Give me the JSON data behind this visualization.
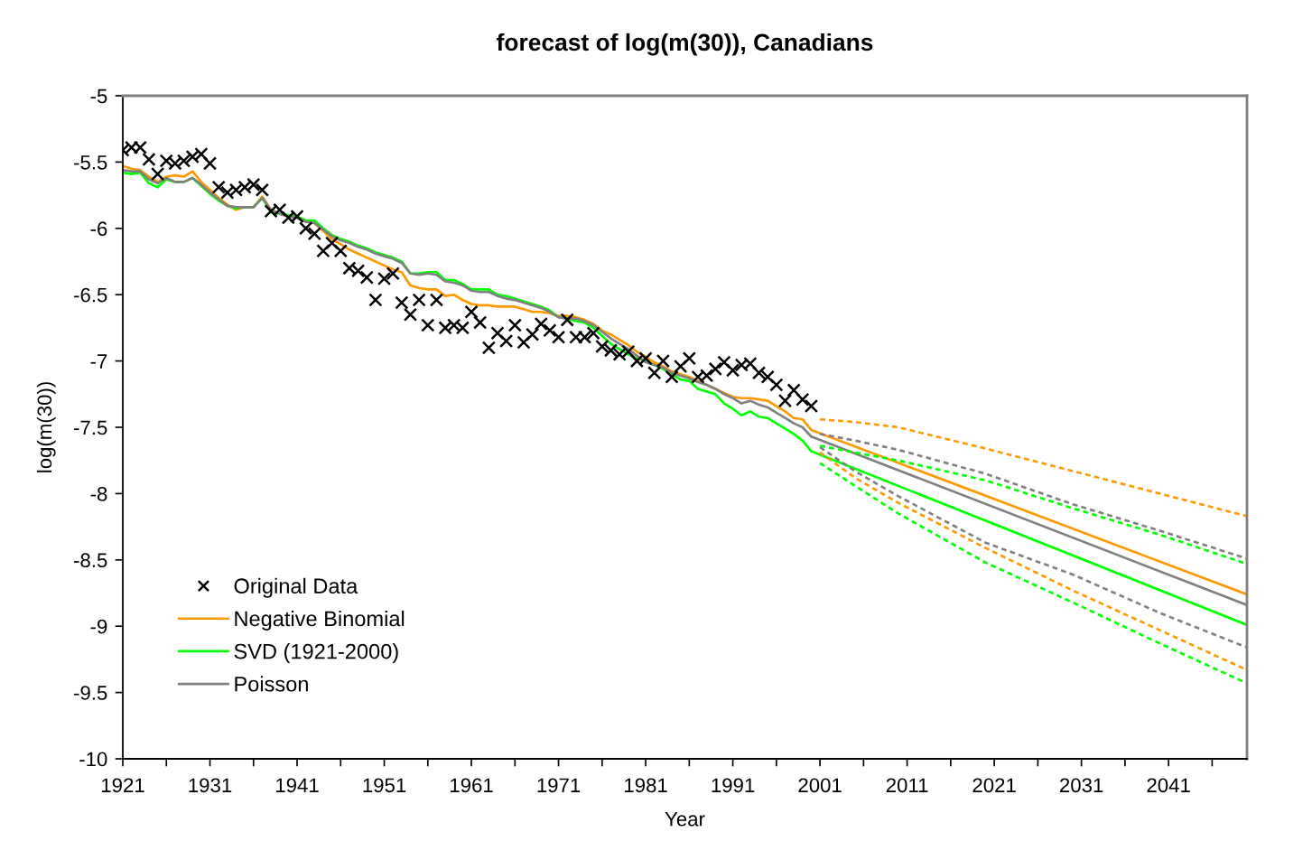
{
  "chart_data": {
    "type": "line",
    "title": "forecast of log(m(30)), Canadians",
    "xlabel": "Year",
    "ylabel": "log(m(30))",
    "xlim": [
      1921,
      2050
    ],
    "xticks": [
      1921,
      {
        "value": 1926,
        "label": null
      },
      1931,
      {
        "value": 1936,
        "label": null
      },
      1941,
      {
        "value": 1946,
        "label": null
      },
      1951,
      {
        "value": 1956,
        "label": null
      },
      1961,
      {
        "value": 1966,
        "label": null
      },
      1971,
      {
        "value": 1976,
        "label": null
      },
      1981,
      {
        "value": 1986,
        "label": null
      },
      1991,
      {
        "value": 1996,
        "label": null
      },
      2001,
      {
        "value": 2006,
        "label": null
      },
      2011,
      {
        "value": 2016,
        "label": null
      },
      2021,
      {
        "value": 2026,
        "label": null
      },
      2031,
      {
        "value": 2036,
        "label": null
      },
      2041,
      {
        "value": 2046,
        "label": null
      }
    ],
    "ylim": [
      -10,
      -5
    ],
    "yticks": [
      -10,
      -9.5,
      -9,
      -8.5,
      -8,
      -7.5,
      -7,
      -6.5,
      -6,
      -5.5,
      -5
    ],
    "legend": "bottom left",
    "series": [
      {
        "name": "Original Data",
        "type": "scatter",
        "marker": "cross",
        "color": "#000000",
        "x": [
          1921,
          1922,
          1923,
          1924,
          1925,
          1926,
          1927,
          1928,
          1929,
          1930,
          1931,
          1932,
          1933,
          1934,
          1935,
          1936,
          1937,
          1938,
          1939,
          1940,
          1941,
          1942,
          1943,
          1944,
          1945,
          1946,
          1947,
          1948,
          1949,
          1950,
          1951,
          1952,
          1953,
          1954,
          1955,
          1956,
          1957,
          1958,
          1959,
          1960,
          1961,
          1962,
          1963,
          1964,
          1965,
          1966,
          1967,
          1968,
          1969,
          1970,
          1971,
          1972,
          1973,
          1974,
          1975,
          1976,
          1977,
          1978,
          1979,
          1980,
          1981,
          1982,
          1983,
          1984,
          1985,
          1986,
          1987,
          1988,
          1989,
          1990,
          1991,
          1992,
          1993,
          1994,
          1995,
          1996,
          1997,
          1998,
          1999,
          2000
        ],
        "values": [
          -5.41,
          -5.39,
          -5.39,
          -5.48,
          -5.59,
          -5.49,
          -5.51,
          -5.49,
          -5.46,
          -5.44,
          -5.51,
          -5.69,
          -5.73,
          -5.71,
          -5.69,
          -5.67,
          -5.71,
          -5.87,
          -5.86,
          -5.92,
          -5.91,
          -6.0,
          -6.04,
          -6.17,
          -6.11,
          -6.17,
          -6.3,
          -6.32,
          -6.37,
          -6.54,
          -6.38,
          -6.34,
          -6.56,
          -6.65,
          -6.54,
          -6.73,
          -6.54,
          -6.75,
          -6.73,
          -6.75,
          -6.63,
          -6.71,
          -6.9,
          -6.79,
          -6.85,
          -6.73,
          -6.86,
          -6.8,
          -6.72,
          -6.77,
          -6.82,
          -6.69,
          -6.82,
          -6.82,
          -6.79,
          -6.89,
          -6.92,
          -6.95,
          -6.93,
          -7.0,
          -6.98,
          -7.09,
          -7.0,
          -7.12,
          -7.04,
          -6.98,
          -7.12,
          -7.11,
          -7.06,
          -7.01,
          -7.07,
          -7.03,
          -7.02,
          -7.09,
          -7.12,
          -7.18,
          -7.3,
          -7.22,
          -7.29,
          -7.34
        ]
      },
      {
        "name": "Negative Binomial",
        "line_style": "solid",
        "color": "#ff9900",
        "x": [
          1921,
          1922,
          1923,
          1924,
          1925,
          1926,
          1927,
          1928,
          1929,
          1930,
          1931,
          1932,
          1933,
          1934,
          1935,
          1936,
          1937,
          1938,
          1939,
          1940,
          1941,
          1942,
          1943,
          1944,
          1945,
          1946,
          1947,
          1948,
          1949,
          1950,
          1951,
          1952,
          1953,
          1954,
          1955,
          1956,
          1957,
          1958,
          1959,
          1960,
          1961,
          1962,
          1963,
          1964,
          1965,
          1966,
          1967,
          1968,
          1969,
          1970,
          1971,
          1972,
          1973,
          1974,
          1975,
          1976,
          1977,
          1978,
          1979,
          1980,
          1981,
          1982,
          1983,
          1984,
          1985,
          1986,
          1987,
          1988,
          1989,
          1990,
          1991,
          1992,
          1993,
          1994,
          1995,
          1996,
          1997,
          1998,
          1999,
          2000,
          2050
        ],
        "values": [
          -5.53,
          -5.55,
          -5.56,
          -5.61,
          -5.65,
          -5.61,
          -5.6,
          -5.61,
          -5.57,
          -5.65,
          -5.71,
          -5.77,
          -5.82,
          -5.86,
          -5.84,
          -5.84,
          -5.76,
          -5.86,
          -5.89,
          -5.91,
          -5.92,
          -5.95,
          -5.96,
          -6.02,
          -6.08,
          -6.12,
          -6.16,
          -6.19,
          -6.22,
          -6.25,
          -6.28,
          -6.31,
          -6.33,
          -6.43,
          -6.45,
          -6.46,
          -6.46,
          -6.51,
          -6.5,
          -6.54,
          -6.57,
          -6.58,
          -6.58,
          -6.59,
          -6.59,
          -6.59,
          -6.61,
          -6.63,
          -6.63,
          -6.64,
          -6.66,
          -6.66,
          -6.67,
          -6.69,
          -6.72,
          -6.77,
          -6.8,
          -6.84,
          -6.88,
          -6.93,
          -6.97,
          -7.01,
          -7.04,
          -7.08,
          -7.1,
          -7.12,
          -7.15,
          -7.18,
          -7.21,
          -7.24,
          -7.27,
          -7.28,
          -7.28,
          -7.29,
          -7.3,
          -7.34,
          -7.38,
          -7.43,
          -7.44,
          -7.52,
          -8.76
        ]
      },
      {
        "name": "SVD (1921-2000)",
        "line_style": "solid",
        "color": "#00ff00",
        "x": [
          1921,
          1922,
          1923,
          1924,
          1925,
          1926,
          1927,
          1928,
          1929,
          1930,
          1931,
          1932,
          1933,
          1934,
          1935,
          1936,
          1937,
          1938,
          1939,
          1940,
          1941,
          1942,
          1943,
          1944,
          1945,
          1946,
          1947,
          1948,
          1949,
          1950,
          1951,
          1952,
          1953,
          1954,
          1955,
          1956,
          1957,
          1958,
          1959,
          1960,
          1961,
          1962,
          1963,
          1964,
          1965,
          1966,
          1967,
          1968,
          1969,
          1970,
          1971,
          1972,
          1973,
          1974,
          1975,
          1976,
          1977,
          1978,
          1979,
          1980,
          1981,
          1982,
          1983,
          1984,
          1985,
          1986,
          1987,
          1988,
          1989,
          1990,
          1991,
          1992,
          1993,
          1994,
          1995,
          1996,
          1997,
          1998,
          1999,
          2000,
          2050
        ],
        "values": [
          -5.58,
          -5.59,
          -5.58,
          -5.66,
          -5.69,
          -5.63,
          -5.65,
          -5.65,
          -5.62,
          -5.68,
          -5.74,
          -5.79,
          -5.83,
          -5.85,
          -5.84,
          -5.84,
          -5.77,
          -5.88,
          -5.89,
          -5.9,
          -5.91,
          -5.94,
          -5.94,
          -6.0,
          -6.05,
          -6.08,
          -6.1,
          -6.13,
          -6.15,
          -6.18,
          -6.2,
          -6.22,
          -6.25,
          -6.34,
          -6.34,
          -6.33,
          -6.33,
          -6.39,
          -6.39,
          -6.42,
          -6.46,
          -6.46,
          -6.46,
          -6.5,
          -6.51,
          -6.53,
          -6.55,
          -6.57,
          -6.59,
          -6.62,
          -6.67,
          -6.68,
          -6.7,
          -6.71,
          -6.75,
          -6.81,
          -6.87,
          -6.91,
          -6.95,
          -6.98,
          -7.0,
          -7.03,
          -7.06,
          -7.1,
          -7.14,
          -7.15,
          -7.21,
          -7.23,
          -7.25,
          -7.32,
          -7.36,
          -7.41,
          -7.38,
          -7.42,
          -7.43,
          -7.47,
          -7.51,
          -7.55,
          -7.6,
          -7.68,
          -8.99
        ]
      },
      {
        "name": "Poisson",
        "line_style": "solid",
        "color": "#808080",
        "x": [
          1921,
          1922,
          1923,
          1924,
          1925,
          1926,
          1927,
          1928,
          1929,
          1930,
          1931,
          1932,
          1933,
          1934,
          1935,
          1936,
          1937,
          1938,
          1939,
          1940,
          1941,
          1942,
          1943,
          1944,
          1945,
          1946,
          1947,
          1948,
          1949,
          1950,
          1951,
          1952,
          1953,
          1954,
          1955,
          1956,
          1957,
          1958,
          1959,
          1960,
          1961,
          1962,
          1963,
          1964,
          1965,
          1966,
          1967,
          1968,
          1969,
          1970,
          1971,
          1972,
          1973,
          1974,
          1975,
          1976,
          1977,
          1978,
          1979,
          1980,
          1981,
          1982,
          1983,
          1984,
          1985,
          1986,
          1987,
          1988,
          1989,
          1990,
          1991,
          1992,
          1993,
          1994,
          1995,
          1996,
          1997,
          1998,
          1999,
          2000,
          2050
        ],
        "values": [
          -5.56,
          -5.57,
          -5.57,
          -5.63,
          -5.66,
          -5.62,
          -5.65,
          -5.65,
          -5.62,
          -5.67,
          -5.73,
          -5.78,
          -5.83,
          -5.84,
          -5.84,
          -5.84,
          -5.77,
          -5.86,
          -5.89,
          -5.91,
          -5.92,
          -5.95,
          -5.96,
          -6.01,
          -6.06,
          -6.09,
          -6.11,
          -6.14,
          -6.16,
          -6.19,
          -6.21,
          -6.23,
          -6.26,
          -6.34,
          -6.35,
          -6.34,
          -6.35,
          -6.4,
          -6.41,
          -6.43,
          -6.47,
          -6.48,
          -6.48,
          -6.51,
          -6.53,
          -6.54,
          -6.56,
          -6.58,
          -6.6,
          -6.63,
          -6.67,
          -6.68,
          -6.68,
          -6.7,
          -6.73,
          -6.78,
          -6.83,
          -6.87,
          -6.91,
          -6.96,
          -7.01,
          -7.03,
          -7.05,
          -7.09,
          -7.11,
          -7.13,
          -7.16,
          -7.18,
          -7.21,
          -7.25,
          -7.28,
          -7.32,
          -7.3,
          -7.33,
          -7.35,
          -7.39,
          -7.43,
          -7.47,
          -7.5,
          -7.57,
          -8.84
        ]
      },
      {
        "line_style": "dashed",
        "color": "#ff9900",
        "x": [
          2001,
          2005,
          2010,
          2020,
          2030,
          2040,
          2050
        ],
        "values": [
          -7.44,
          -7.46,
          -7.5,
          -7.66,
          -7.83,
          -8.0,
          -8.17
        ]
      },
      {
        "line_style": "dashed",
        "color": "#ff9900",
        "x": [
          2001,
          2005,
          2010,
          2020,
          2030,
          2040,
          2050
        ],
        "values": [
          -7.69,
          -7.88,
          -8.07,
          -8.41,
          -8.73,
          -9.03,
          -9.33
        ]
      },
      {
        "line_style": "dashed",
        "color": "#808080",
        "x": [
          2001,
          2005,
          2010,
          2020,
          2030,
          2040,
          2050
        ],
        "values": [
          -7.55,
          -7.6,
          -7.67,
          -7.85,
          -8.08,
          -8.28,
          -8.49
        ]
      },
      {
        "line_style": "dashed",
        "color": "#808080",
        "x": [
          2001,
          2005,
          2010,
          2020,
          2030,
          2040,
          2050
        ],
        "values": [
          -7.65,
          -7.83,
          -8.02,
          -8.37,
          -8.61,
          -8.9,
          -9.16
        ]
      },
      {
        "line_style": "dashed",
        "color": "#00ff00",
        "x": [
          2001,
          2005,
          2010,
          2020,
          2030,
          2040,
          2050
        ],
        "values": [
          -7.64,
          -7.69,
          -7.75,
          -7.9,
          -8.11,
          -8.31,
          -8.53
        ]
      },
      {
        "line_style": "dashed",
        "color": "#00ff00",
        "x": [
          2001,
          2005,
          2010,
          2020,
          2030,
          2040,
          2050
        ],
        "values": [
          -7.77,
          -7.94,
          -8.15,
          -8.52,
          -8.82,
          -9.13,
          -9.43
        ]
      }
    ]
  }
}
